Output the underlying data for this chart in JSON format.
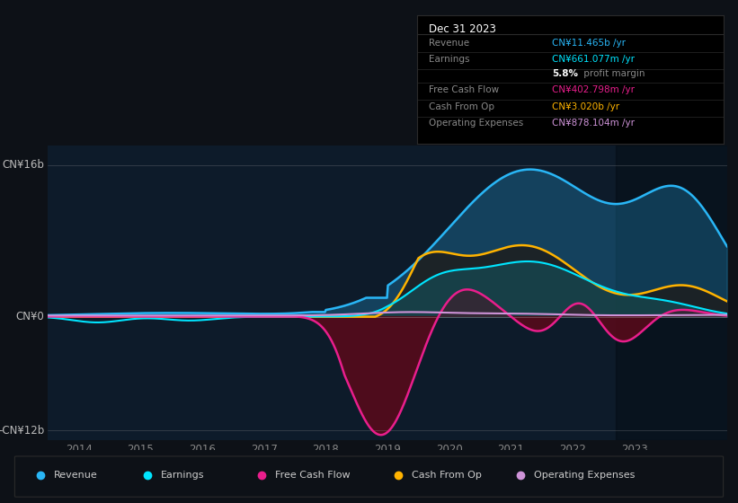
{
  "bg_color": "#0d1117",
  "chart_bg": "#0d1b2a",
  "ylim": [
    -13,
    18
  ],
  "xlim": [
    2013.5,
    2024.5
  ],
  "x_ticks": [
    2014,
    2015,
    2016,
    2017,
    2018,
    2019,
    2020,
    2021,
    2022,
    2023
  ],
  "y_label_top": "CN¥16b",
  "y_label_zero": "CN¥0",
  "y_label_bottom": "-CN¥12b",
  "info_box": {
    "title": "Dec 31 2023",
    "rows": [
      {
        "label": "Revenue",
        "value": "CN¥11.465b /yr",
        "value_color": "#29b6f6"
      },
      {
        "label": "Earnings",
        "value": "CN¥661.077m /yr",
        "value_color": "#00e5ff"
      },
      {
        "label": "",
        "value_prefix": "5.8%",
        "value_suffix": " profit margin"
      },
      {
        "label": "Free Cash Flow",
        "value": "CN¥402.798m /yr",
        "value_color": "#e91e8c"
      },
      {
        "label": "Cash From Op",
        "value": "CN¥3.020b /yr",
        "value_color": "#ffb300"
      },
      {
        "label": "Operating Expenses",
        "value": "CN¥878.104m /yr",
        "value_color": "#ce93d8"
      }
    ]
  },
  "legend": [
    {
      "label": "Revenue",
      "color": "#29b6f6"
    },
    {
      "label": "Earnings",
      "color": "#00e5ff"
    },
    {
      "label": "Free Cash Flow",
      "color": "#e91e8c"
    },
    {
      "label": "Cash From Op",
      "color": "#ffb300"
    },
    {
      "label": "Operating Expenses",
      "color": "#ce93d8"
    }
  ],
  "revenue_color": "#29b6f6",
  "earnings_color": "#00e5ff",
  "fcf_color": "#e91e8c",
  "cashfromop_color": "#ffb300",
  "opex_color": "#ce93d8",
  "dark_overlay_start": 2022.7
}
